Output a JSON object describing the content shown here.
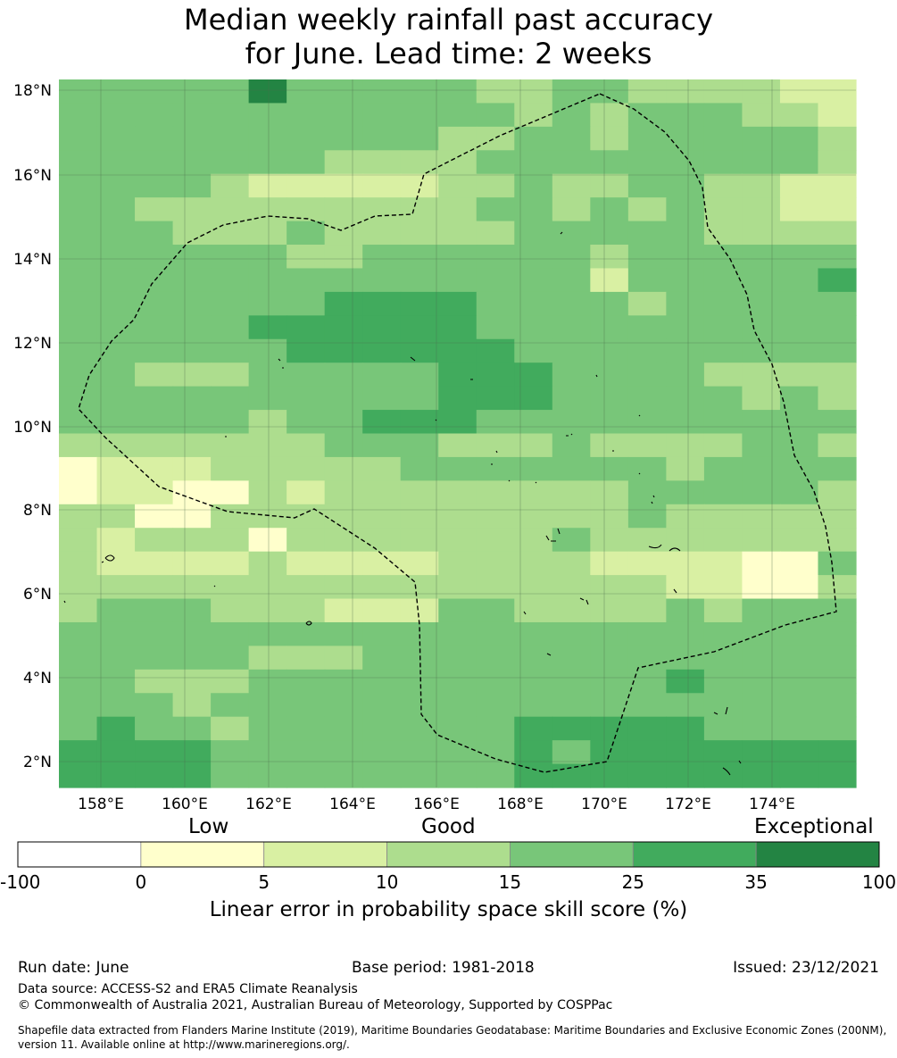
{
  "title_line1": "Median weekly rainfall past accuracy",
  "title_line2": "for June. Lead time: 2 weeks",
  "lat_labels": [
    "18°N",
    "16°N",
    "14°N",
    "12°N",
    "10°N",
    "8°N",
    "6°N",
    "4°N",
    "2°N"
  ],
  "lon_labels": [
    "158°E",
    "160°E",
    "162°E",
    "164°E",
    "166°E",
    "168°E",
    "170°E",
    "172°E",
    "174°E"
  ],
  "legend": {
    "label_low": "Low",
    "label_good": "Good",
    "label_exceptional": "Exceptional",
    "bins": [
      {
        "from": "-100",
        "to": "0",
        "color": "#ffffff"
      },
      {
        "from": "0",
        "to": "5",
        "color": "#ffffcc"
      },
      {
        "from": "5",
        "to": "10",
        "color": "#d9f0a3"
      },
      {
        "from": "10",
        "to": "15",
        "color": "#addd8e"
      },
      {
        "from": "15",
        "to": "25",
        "color": "#78c679"
      },
      {
        "from": "25",
        "to": "35",
        "color": "#41ab5d"
      },
      {
        "from": "35",
        "to": "100",
        "color": "#238443"
      }
    ],
    "tick_labels": [
      "-100",
      "0",
      "5",
      "10",
      "15",
      "25",
      "35",
      "100"
    ],
    "axis_label": "Linear error in probability space skill score (%)"
  },
  "grid_colors": {
    "0": "#ffffcc",
    "1": "#d9f0a3",
    "2": "#addd8e",
    "3": "#78c679",
    "4": "#41ab5d",
    "5": "#238443"
  },
  "grid": [
    "333335333332233222211",
    "333333333333232333221",
    "333333333322332333332",
    "333333322223333333332",
    "333321111122322332211",
    "332222222223323232211",
    "333222322222333332222",
    "333333223333332333333",
    "333333333333331333334",
    "333333344443333233333",
    "333334444443333333333",
    "333333444444333333333",
    "332223333344433332222",
    "333333333344433333232",
    "333332334443333333333",
    "222222233322232222332",
    "011122222333333323333",
    "011002122222222333332",
    "220022222222222322222",
    "212220222222232222222",
    "211112111122221111003",
    "222222222222222211002",
    "233322211133222232333",
    "333333333333333333333",
    "333332223333333333333",
    "332223333333333343333",
    "333233333333333333333",
    "343323333333444443333",
    "444433333333434444444",
    "444433333333444444444"
  ],
  "footer": {
    "run_date": "Run date: June",
    "base_period": "Base period: 1981-2018",
    "issued": "Issued: 23/12/2021",
    "data_source": "Data source: ACCESS-S2 and ERA5 Climate Reanalysis",
    "copyright": "© Commonwealth of Australia 2021, Australian Bureau of Meteorology, Supported by COSPPac",
    "shapefile": "Shapefile data extracted from Flanders Marine Institute (2019), Maritime Boundaries Geodatabase: Maritime Boundaries and Exclusive Economic Zones (200NM), version 11. Available online at http://www.marineregions.org/."
  }
}
